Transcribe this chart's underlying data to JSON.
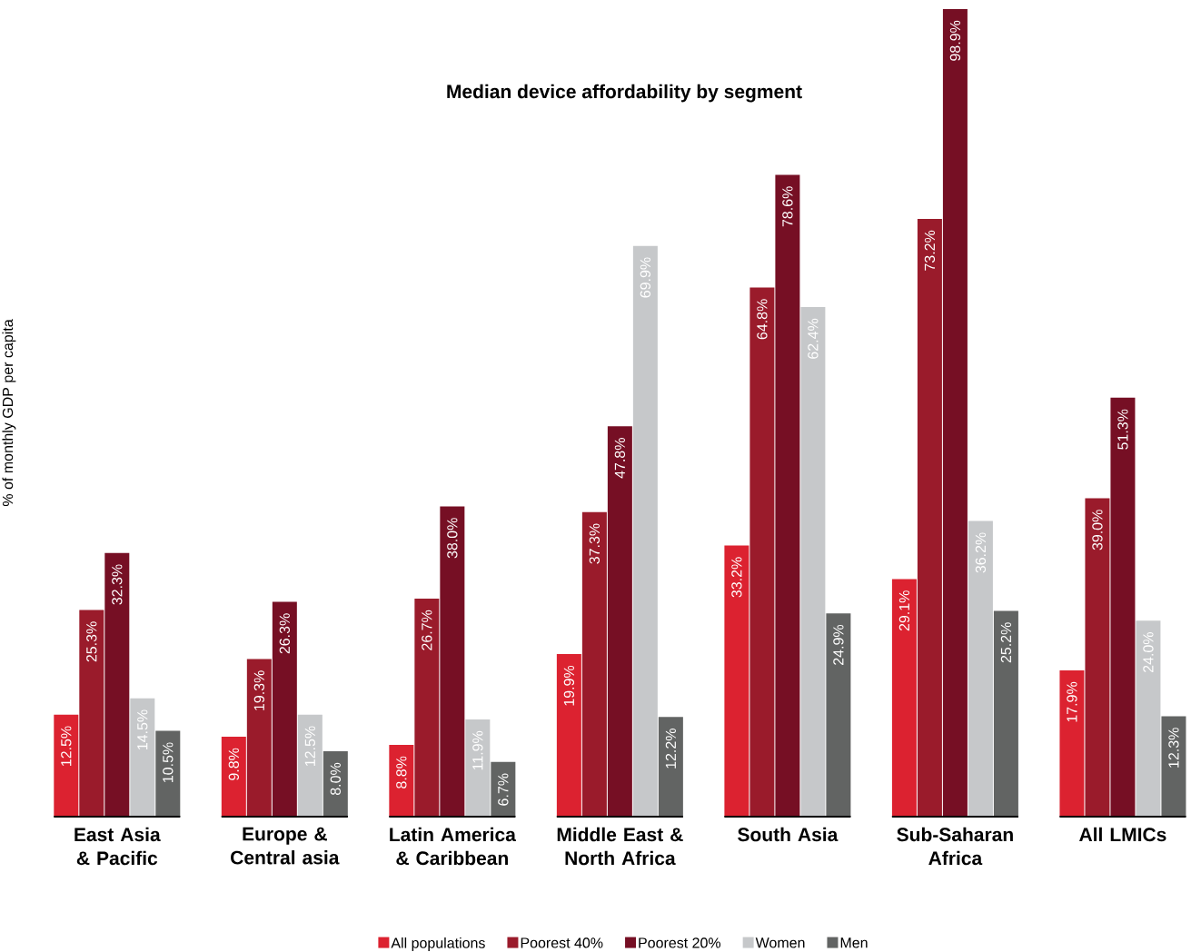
{
  "chart_data": {
    "type": "bar",
    "title": "Median device affordability by segment",
    "ylabel": "% of monthly GDP per capita",
    "categories": [
      "East Asia & Pacific",
      "Europe & Central asia",
      "Latin America & Caribbean",
      "Middle East & North Africa",
      "South Asia",
      "Sub-Saharan Africa",
      "All LMICs"
    ],
    "legend": "bottom",
    "series": [
      {
        "name": "All populations",
        "color": "#dc2230",
        "values": [
          12.5,
          9.8,
          8.8,
          19.9,
          33.2,
          29.1,
          17.9
        ],
        "value_labels": [
          "12.5%",
          "9.8%",
          "8.8%",
          "19.9%",
          "33.2%",
          "29.1%",
          "17.9%"
        ]
      },
      {
        "name": "Poorest 40%",
        "color": "#9a1b2b",
        "values": [
          25.3,
          19.3,
          26.7,
          37.3,
          64.8,
          73.2,
          39.0
        ],
        "value_labels": [
          "25.3%",
          "19.3%",
          "26.7%",
          "37.3%",
          "64.8%",
          "73.2%",
          "39.0%"
        ]
      },
      {
        "name": "Poorest 20%",
        "color": "#760f24",
        "values": [
          32.3,
          26.3,
          38.0,
          47.8,
          78.6,
          98.9,
          51.3
        ],
        "value_labels": [
          "32.3%",
          "26.3%",
          "38.0%",
          "47.8%",
          "78.6%",
          "98.9%",
          "51.3%"
        ]
      },
      {
        "name": "Women",
        "color": "#c6c8ca",
        "values": [
          14.5,
          12.5,
          11.9,
          69.9,
          62.4,
          36.2,
          24.0
        ],
        "value_labels": [
          "14.5%",
          "12.5%",
          "11.9%",
          "69.9%",
          "62.4%",
          "36.2%",
          "24.0%"
        ]
      },
      {
        "name": "Men",
        "color": "#626463",
        "values": [
          10.5,
          8.0,
          6.7,
          12.2,
          24.9,
          25.2,
          12.3
        ],
        "value_labels": [
          "10.5%",
          "8.0%",
          "6.7%",
          "12.2%",
          "24.9%",
          "25.2%",
          "12.3%"
        ]
      }
    ]
  }
}
